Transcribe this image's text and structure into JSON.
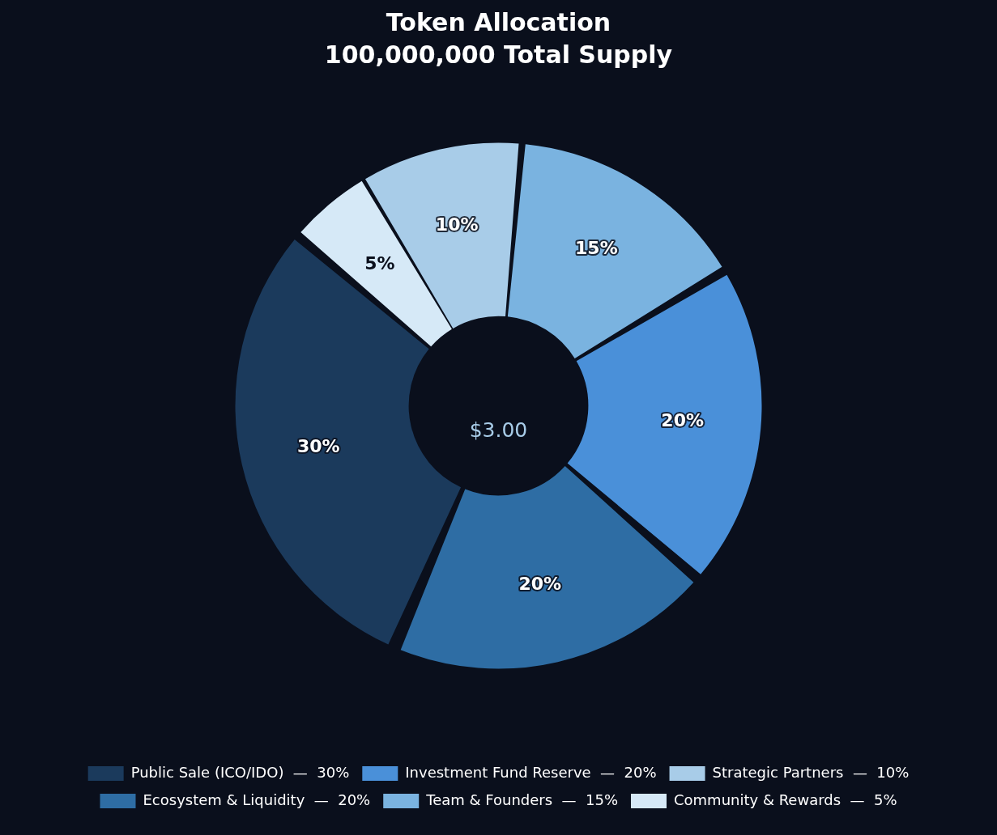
{
  "chart_data": {
    "type": "donut",
    "title": "Token Allocation",
    "subtitle": "100,000,000 Total Supply",
    "categories": [
      "Public Sale (ICO/IDO)  —  30%",
      "Ecosystem & Liquidity  —  20%",
      "Investment Fund Reserve  —  20%",
      "Team & Founders  —  15%",
      "Strategic Partners  —  10%",
      "Community & Rewards  —  5%"
    ],
    "values": [
      30,
      20,
      20,
      15,
      10,
      5
    ],
    "colors": [
      "#1b3a5c",
      "#2e6da4",
      "#4a90d9",
      "#7ab3e0",
      "#a8cce8",
      "#d6e9f7"
    ],
    "value_labels": [
      "30%",
      "20%",
      "20%",
      "15%",
      "10%",
      "5%"
    ],
    "annotations": [
      "$3.00"
    ],
    "legend": "bottom"
  }
}
